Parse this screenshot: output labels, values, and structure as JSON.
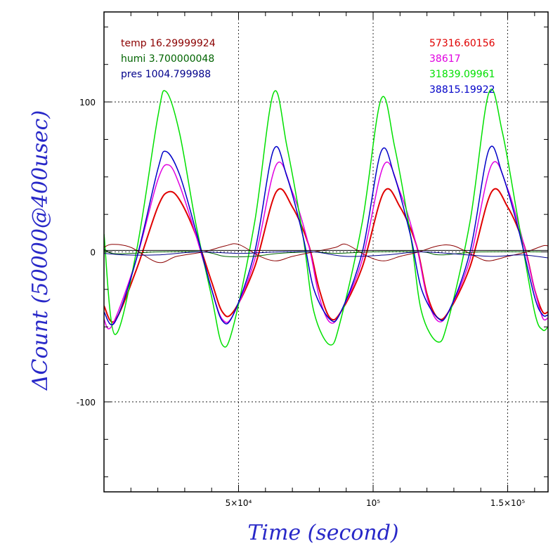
{
  "chart_data": {
    "type": "line",
    "xlabel": "Time (second)",
    "ylabel": "ΔCount (50000@400usec)",
    "xlim": [
      0,
      165000
    ],
    "ylim": [
      -160,
      160
    ],
    "x_ticks": [
      {
        "value": 50000,
        "label": "5×10⁴"
      },
      {
        "value": 100000,
        "label": "10⁵"
      },
      {
        "value": 150000,
        "label": "1.5×10⁵"
      }
    ],
    "y_ticks": [
      {
        "value": 100,
        "label": "100"
      },
      {
        "value": 0,
        "label": "0"
      },
      {
        "value": -100,
        "label": "-100"
      }
    ],
    "grid": true,
    "legend_left": [
      {
        "text": "temp 16.29999924",
        "color": "#8b0000"
      },
      {
        "text": "humi 3.700000048",
        "color": "#006400"
      },
      {
        "text": "pres 1004.799988",
        "color": "#00008b"
      }
    ],
    "legend_right": [
      {
        "text": "57316.60156",
        "color": "#e00000"
      },
      {
        "text": "38617",
        "color": "#e000e0"
      },
      {
        "text": "31839.09961",
        "color": "#00e000"
      },
      {
        "text": "38815.19922",
        "color": "#0000c8"
      }
    ],
    "series": [
      {
        "color": "#e00000",
        "width": 2,
        "points": [
          [
            0,
            -36
          ],
          [
            4000,
            -46
          ],
          [
            12000,
            -12
          ],
          [
            20000,
            30
          ],
          [
            24000,
            40
          ],
          [
            28000,
            35
          ],
          [
            34000,
            12
          ],
          [
            40000,
            -20
          ],
          [
            44000,
            -40
          ],
          [
            48000,
            -40
          ],
          [
            56000,
            -10
          ],
          [
            64000,
            40
          ],
          [
            70000,
            30
          ],
          [
            76000,
            5
          ],
          [
            80000,
            -25
          ],
          [
            84000,
            -44
          ],
          [
            88000,
            -40
          ],
          [
            96000,
            -10
          ],
          [
            104000,
            40
          ],
          [
            110000,
            30
          ],
          [
            116000,
            5
          ],
          [
            120000,
            -28
          ],
          [
            124000,
            -44
          ],
          [
            128000,
            -40
          ],
          [
            136000,
            -10
          ],
          [
            144000,
            40
          ],
          [
            150000,
            30
          ],
          [
            156000,
            5
          ],
          [
            160000,
            -25
          ],
          [
            163000,
            -40
          ],
          [
            165000,
            -40
          ]
        ]
      },
      {
        "color": "#e000e0",
        "width": 1.5,
        "points": [
          [
            0,
            -45
          ],
          [
            3000,
            -49
          ],
          [
            12000,
            -5
          ],
          [
            20000,
            48
          ],
          [
            24000,
            58
          ],
          [
            28000,
            45
          ],
          [
            34000,
            12
          ],
          [
            40000,
            -25
          ],
          [
            44000,
            -45
          ],
          [
            48000,
            -42
          ],
          [
            56000,
            -5
          ],
          [
            64000,
            58
          ],
          [
            70000,
            40
          ],
          [
            76000,
            5
          ],
          [
            80000,
            -30
          ],
          [
            84000,
            -47
          ],
          [
            88000,
            -40
          ],
          [
            96000,
            -5
          ],
          [
            104000,
            58
          ],
          [
            110000,
            40
          ],
          [
            116000,
            5
          ],
          [
            120000,
            -30
          ],
          [
            124000,
            -46
          ],
          [
            128000,
            -40
          ],
          [
            136000,
            -5
          ],
          [
            144000,
            58
          ],
          [
            150000,
            42
          ],
          [
            156000,
            5
          ],
          [
            160000,
            -25
          ],
          [
            163000,
            -44
          ],
          [
            165000,
            -44
          ]
        ]
      },
      {
        "color": "#00e000",
        "width": 1.5,
        "points": [
          [
            0,
            12
          ],
          [
            4000,
            -55
          ],
          [
            12000,
            0
          ],
          [
            20000,
            90
          ],
          [
            23000,
            107
          ],
          [
            28000,
            80
          ],
          [
            34000,
            20
          ],
          [
            40000,
            -30
          ],
          [
            44000,
            -62
          ],
          [
            48000,
            -50
          ],
          [
            56000,
            20
          ],
          [
            63000,
            106
          ],
          [
            68000,
            70
          ],
          [
            74000,
            10
          ],
          [
            78000,
            -40
          ],
          [
            84000,
            -62
          ],
          [
            88000,
            -45
          ],
          [
            96000,
            20
          ],
          [
            103000,
            102
          ],
          [
            108000,
            70
          ],
          [
            114000,
            10
          ],
          [
            118000,
            -40
          ],
          [
            124000,
            -60
          ],
          [
            128000,
            -45
          ],
          [
            136000,
            20
          ],
          [
            143000,
            106
          ],
          [
            148000,
            80
          ],
          [
            154000,
            20
          ],
          [
            160000,
            -40
          ],
          [
            163000,
            -52
          ],
          [
            165000,
            -50
          ]
        ]
      },
      {
        "color": "#0000c8",
        "width": 1.5,
        "points": [
          [
            0,
            -40
          ],
          [
            4000,
            -47
          ],
          [
            12000,
            -5
          ],
          [
            20000,
            55
          ],
          [
            23000,
            67
          ],
          [
            28000,
            52
          ],
          [
            34000,
            15
          ],
          [
            40000,
            -25
          ],
          [
            44000,
            -46
          ],
          [
            48000,
            -42
          ],
          [
            56000,
            0
          ],
          [
            63000,
            68
          ],
          [
            68000,
            50
          ],
          [
            74000,
            10
          ],
          [
            78000,
            -25
          ],
          [
            84000,
            -45
          ],
          [
            88000,
            -40
          ],
          [
            96000,
            0
          ],
          [
            103000,
            67
          ],
          [
            108000,
            50
          ],
          [
            114000,
            10
          ],
          [
            118000,
            -25
          ],
          [
            124000,
            -44
          ],
          [
            128000,
            -40
          ],
          [
            136000,
            0
          ],
          [
            143000,
            68
          ],
          [
            148000,
            52
          ],
          [
            154000,
            15
          ],
          [
            160000,
            -30
          ],
          [
            163000,
            -42
          ],
          [
            165000,
            -42
          ]
        ]
      },
      {
        "color": "#8b0000",
        "width": 1,
        "points": [
          [
            0,
            3
          ],
          [
            3000,
            5
          ],
          [
            10000,
            3
          ],
          [
            20000,
            -7
          ],
          [
            27000,
            -3
          ],
          [
            37000,
            0
          ],
          [
            45000,
            4
          ],
          [
            50000,
            5
          ],
          [
            58000,
            -3
          ],
          [
            64000,
            -6
          ],
          [
            70000,
            -3
          ],
          [
            78000,
            0
          ],
          [
            86000,
            3
          ],
          [
            90000,
            5
          ],
          [
            98000,
            -3
          ],
          [
            104000,
            -6
          ],
          [
            110000,
            -3
          ],
          [
            117000,
            0
          ],
          [
            124000,
            4
          ],
          [
            130000,
            4
          ],
          [
            138000,
            -3
          ],
          [
            143000,
            -6
          ],
          [
            150000,
            -3
          ],
          [
            157000,
            0
          ],
          [
            163000,
            4
          ],
          [
            165000,
            4
          ]
        ]
      },
      {
        "color": "#006400",
        "width": 1,
        "points": [
          [
            0,
            2
          ],
          [
            3000,
            -1
          ],
          [
            10000,
            -1
          ],
          [
            20000,
            0
          ],
          [
            37000,
            0
          ],
          [
            45000,
            -3
          ],
          [
            55000,
            -3
          ],
          [
            65000,
            -1
          ],
          [
            78000,
            0
          ],
          [
            86000,
            -1
          ],
          [
            100000,
            0
          ],
          [
            118000,
            0
          ],
          [
            125000,
            -2
          ],
          [
            140000,
            0
          ],
          [
            165000,
            0
          ]
        ]
      },
      {
        "color": "#00008b",
        "width": 1,
        "points": [
          [
            0,
            -1
          ],
          [
            8000,
            -2
          ],
          [
            20000,
            -2
          ],
          [
            35000,
            0
          ],
          [
            50000,
            -1
          ],
          [
            65000,
            0
          ],
          [
            78000,
            0
          ],
          [
            90000,
            -3
          ],
          [
            105000,
            -2
          ],
          [
            118000,
            0
          ],
          [
            135000,
            -2
          ],
          [
            145000,
            -3
          ],
          [
            155000,
            -2
          ],
          [
            165000,
            -4
          ]
        ]
      },
      {
        "color": "#000000",
        "width": 1,
        "points": [
          [
            0,
            1
          ],
          [
            40000,
            1
          ],
          [
            80000,
            1
          ],
          [
            120000,
            1
          ],
          [
            165000,
            1
          ]
        ]
      }
    ]
  }
}
